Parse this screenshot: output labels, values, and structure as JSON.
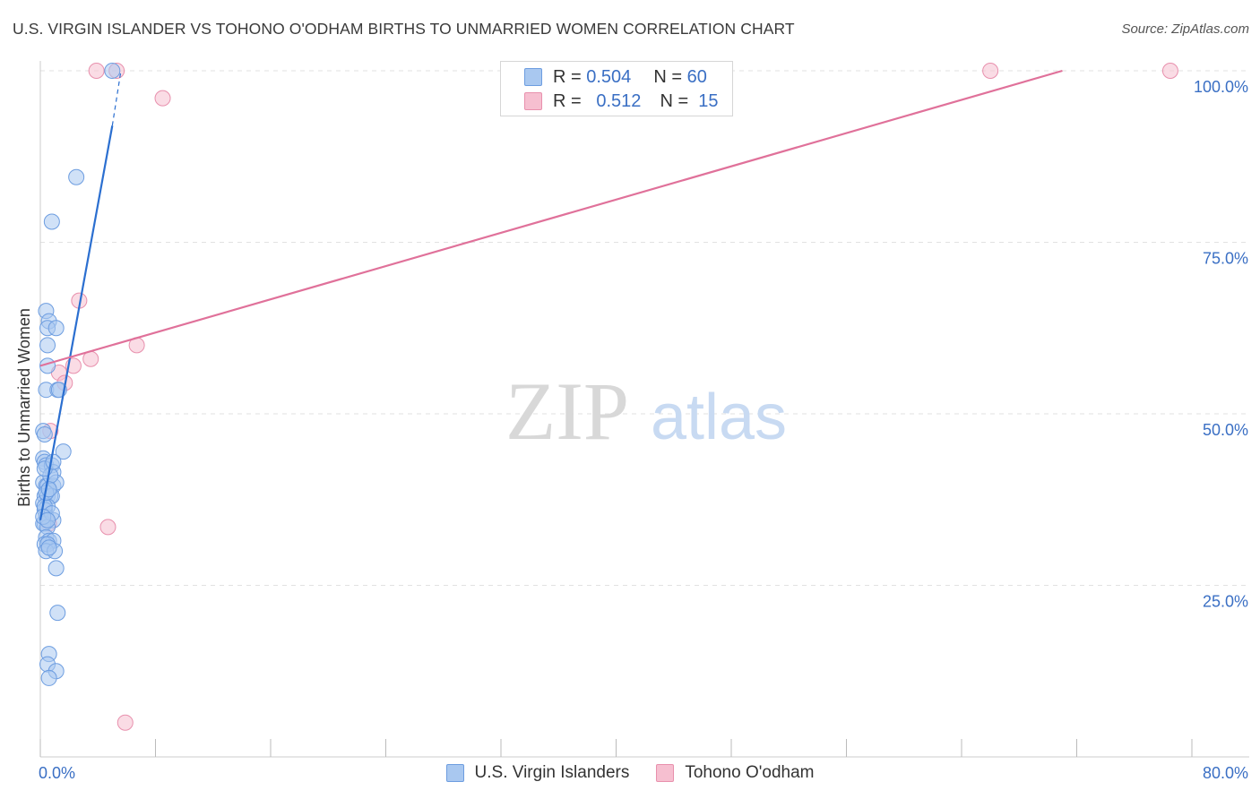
{
  "title": "U.S. VIRGIN ISLANDER VS TOHONO O'ODHAM BIRTHS TO UNMARRIED WOMEN CORRELATION CHART",
  "source": "Source: ZipAtlas.com",
  "watermark": {
    "zip": "ZIP",
    "atlas": "atlas"
  },
  "colors": {
    "blue_fill": "#a9c8f0",
    "blue_stroke": "#6d9de0",
    "blue_line": "#2b6fd0",
    "pink_fill": "#f6bfd0",
    "pink_stroke": "#e890ad",
    "pink_line": "#e0719a",
    "axis_label": "#3a6fc4",
    "grid": "#e2e2e2"
  },
  "legend_top": [
    {
      "r_label": "R =",
      "r_value": "0.504",
      "n_label": "N =",
      "n_value": "60"
    },
    {
      "r_label": "R =",
      "r_value": "0.512",
      "n_label": "N =",
      "n_value": "15"
    }
  ],
  "chart_data": {
    "type": "scatter",
    "title": "U.S. VIRGIN ISLANDER VS TOHONO O'ODHAM BIRTHS TO UNMARRIED WOMEN CORRELATION CHART",
    "xlabel": "",
    "ylabel": "Births to Unmarried Women",
    "xlim": [
      0,
      80
    ],
    "ylim": [
      0,
      100
    ],
    "x_tick_labels": [
      "0.0%",
      "80.0%"
    ],
    "y_tick_labels": [
      "25.0%",
      "50.0%",
      "75.0%",
      "100.0%"
    ],
    "y_ticks": [
      25,
      50,
      75,
      100
    ],
    "grid": true,
    "legend_position": "bottom",
    "series": [
      {
        "name": "U.S. Virgin Islanders",
        "r": 0.504,
        "n": 60,
        "trend": {
          "x0": 0,
          "y0": 34.5,
          "x1": 5.0,
          "y1": 92.0,
          "dash_to_x": 5.6,
          "dash_to_y": 100
        },
        "points": [
          [
            5.0,
            100
          ],
          [
            2.5,
            84.5
          ],
          [
            0.8,
            78
          ],
          [
            0.4,
            65
          ],
          [
            0.6,
            63.5
          ],
          [
            0.5,
            62.5
          ],
          [
            1.1,
            62.5
          ],
          [
            0.5,
            60
          ],
          [
            0.5,
            57
          ],
          [
            0.4,
            53.5
          ],
          [
            1.2,
            53.5
          ],
          [
            1.3,
            53.5
          ],
          [
            0.2,
            47.5
          ],
          [
            0.3,
            47
          ],
          [
            1.6,
            44.5
          ],
          [
            0.2,
            43.5
          ],
          [
            0.3,
            43
          ],
          [
            0.4,
            42.5
          ],
          [
            0.8,
            42.5
          ],
          [
            0.9,
            41.5
          ],
          [
            0.2,
            40
          ],
          [
            0.4,
            39.5
          ],
          [
            0.5,
            39.5
          ],
          [
            0.9,
            39.5
          ],
          [
            1.1,
            40
          ],
          [
            0.3,
            38
          ],
          [
            0.5,
            38
          ],
          [
            0.7,
            38
          ],
          [
            0.8,
            38
          ],
          [
            0.2,
            37
          ],
          [
            0.5,
            36.5
          ],
          [
            0.3,
            36
          ],
          [
            0.4,
            35
          ],
          [
            0.9,
            34.5
          ],
          [
            0.3,
            34
          ],
          [
            0.2,
            34
          ],
          [
            0.5,
            33.5
          ],
          [
            0.4,
            32
          ],
          [
            0.6,
            31.5
          ],
          [
            0.9,
            31.5
          ],
          [
            0.3,
            31
          ],
          [
            0.5,
            31
          ],
          [
            0.4,
            30
          ],
          [
            1.0,
            30
          ],
          [
            1.1,
            27.5
          ],
          [
            1.2,
            21
          ],
          [
            0.6,
            15
          ],
          [
            0.5,
            13.5
          ],
          [
            1.1,
            12.5
          ],
          [
            0.6,
            11.5
          ],
          [
            0.3,
            36.5
          ],
          [
            0.7,
            41
          ],
          [
            0.8,
            35.5
          ],
          [
            0.3,
            42
          ],
          [
            0.6,
            30.5
          ],
          [
            0.4,
            38.5
          ],
          [
            0.9,
            43
          ],
          [
            0.2,
            35
          ],
          [
            0.6,
            39
          ],
          [
            0.5,
            34.5
          ]
        ]
      },
      {
        "name": "Tohono O'odham",
        "r": 0.512,
        "n": 15,
        "trend": {
          "x0": 0,
          "y0": 57.0,
          "x1": 71.0,
          "y1": 100
        },
        "points": [
          [
            3.9,
            100
          ],
          [
            5.3,
            100
          ],
          [
            66.0,
            100
          ],
          [
            78.5,
            100
          ],
          [
            8.5,
            96
          ],
          [
            2.7,
            66.5
          ],
          [
            6.7,
            60
          ],
          [
            3.5,
            58
          ],
          [
            2.3,
            57
          ],
          [
            1.3,
            56
          ],
          [
            1.7,
            54.5
          ],
          [
            0.7,
            47.5
          ],
          [
            4.7,
            33.5
          ],
          [
            0.6,
            34
          ],
          [
            5.9,
            5
          ]
        ]
      }
    ]
  }
}
